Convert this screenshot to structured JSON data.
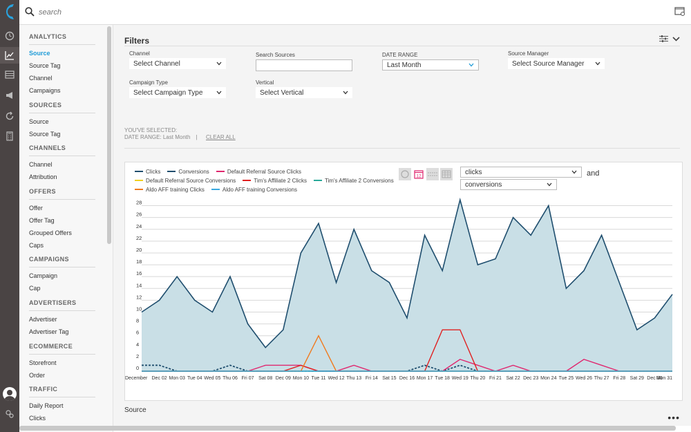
{
  "search": {
    "placeholder": "search"
  },
  "nav": {
    "sections": [
      {
        "title": "ANALYTICS",
        "items": [
          "Source",
          "Source Tag",
          "Channel",
          "Campaigns"
        ],
        "active": 0
      },
      {
        "title": "SOURCES",
        "items": [
          "Source",
          "Source Tag"
        ]
      },
      {
        "title": "CHANNELS",
        "items": [
          "Channel",
          "Attribution"
        ]
      },
      {
        "title": "OFFERS",
        "items": [
          "Offer",
          "Offer Tag",
          "Grouped Offers",
          "Caps"
        ]
      },
      {
        "title": "CAMPAIGNS",
        "items": [
          "Campaign",
          "Cap"
        ]
      },
      {
        "title": "ADVERTISERS",
        "items": [
          "Advertiser",
          "Advertiser Tag"
        ]
      },
      {
        "title": "ECOMMERCE",
        "items": [
          "Storefront",
          "Order"
        ]
      },
      {
        "title": "TRAFFIC",
        "items": [
          "Daily Report",
          "Clicks"
        ]
      }
    ]
  },
  "filters": {
    "title": "Filters",
    "channel": {
      "label": "Channel",
      "value": "Select Channel"
    },
    "search_sources": {
      "label": "Search Sources",
      "value": ""
    },
    "date_range": {
      "label": "DATE RANGE",
      "value": "Last Month"
    },
    "source_manager": {
      "label": "Source Manager",
      "value": "Select Source Manager"
    },
    "campaign_type": {
      "label": "Campaign Type",
      "value": "Select Campaign Type"
    },
    "vertical": {
      "label": "Vertical",
      "value": "Select Vertical"
    }
  },
  "selected": {
    "heading": "YOU'VE SELECTED:",
    "date_range_text": "DATE RANGE:  Last Month",
    "separator": "|",
    "clear_all": "CLEAR ALL"
  },
  "chart_controls": {
    "metric1": "clicks",
    "metric2": "conversions",
    "and_label": "and",
    "calendar_number": "12"
  },
  "footer": {
    "source_label": "Source"
  },
  "colors": {
    "clicks": "#1f4e6e",
    "clicks_fill": "#c9dfe6",
    "conversions": "#1f4e6e",
    "default_referral_clicks": "#e0266e",
    "default_referral_conversions": "#f0d020",
    "tims_affiliate_clicks": "#e02020",
    "tims_affiliate_conversions": "#2aaa9a",
    "aldo_clicks": "#f07a1e",
    "aldo_conversions": "#3aa8e0"
  },
  "chart_data": {
    "type": "area",
    "x": [
      "December",
      "Dec 02",
      "Mon 03",
      "Tue 04",
      "Wed 05",
      "Thu 06",
      "Fri 07",
      "Sat 08",
      "Dec 09",
      "Mon 10",
      "Tue 11",
      "Wed 12",
      "Thu 13",
      "Fri 14",
      "Sat 15",
      "Dec 16",
      "Mon 17",
      "Tue 18",
      "Wed 19",
      "Thu 20",
      "Fri 21",
      "Sat 22",
      "Dec 23",
      "Mon 24",
      "Tue 25",
      "Wed 26",
      "Thu 27",
      "Fri 28",
      "Sat 29",
      "Dec 30",
      "Mon 31"
    ],
    "yticks": [
      0,
      2,
      4,
      6,
      8,
      10,
      12,
      14,
      16,
      18,
      20,
      22,
      24,
      26,
      28
    ],
    "ylim": [
      0,
      29
    ],
    "grid": true,
    "legend_position": "top-left",
    "series": [
      {
        "name": "Clicks",
        "key": "clicks",
        "style": "area",
        "values": [
          10,
          12,
          16,
          12,
          10,
          16,
          8,
          4,
          7,
          20,
          25,
          15,
          24,
          17,
          15,
          9,
          23,
          17,
          29,
          18,
          19,
          26,
          23,
          28,
          14,
          17,
          23,
          15,
          7,
          9,
          13
        ]
      },
      {
        "name": "Conversions",
        "key": "conversions",
        "style": "dashed",
        "values": [
          1,
          1,
          0,
          0,
          0,
          1,
          0,
          0,
          0,
          0,
          0,
          0,
          0,
          0,
          0,
          0,
          1,
          0,
          1,
          0,
          0,
          0,
          0,
          0,
          0,
          0,
          0,
          0,
          0,
          0,
          0
        ]
      },
      {
        "name": "Default Referral Source Clicks",
        "key": "default_referral_clicks",
        "style": "line",
        "values": [
          0,
          0,
          0,
          0,
          0,
          0,
          0,
          1,
          1,
          1,
          0,
          0,
          1,
          0,
          0,
          0,
          0,
          0,
          2,
          1,
          0,
          1,
          0,
          0,
          0,
          2,
          1,
          0,
          0,
          0,
          0
        ]
      },
      {
        "name": "Default Referral Source Conversions",
        "key": "default_referral_conversions",
        "style": "line",
        "values": [
          0,
          0,
          0,
          0,
          0,
          0,
          0,
          0,
          0,
          0,
          0,
          0,
          0,
          0,
          0,
          0,
          0,
          0,
          0,
          0,
          0,
          0,
          0,
          0,
          0,
          0,
          0,
          0,
          0,
          0,
          0
        ]
      },
      {
        "name": "Tim's Affiliate 2 Clicks",
        "key": "tims_affiliate_clicks",
        "style": "line",
        "values": [
          0,
          0,
          0,
          0,
          0,
          0,
          0,
          0,
          0,
          1,
          0,
          0,
          0,
          0,
          0,
          0,
          0,
          7,
          7,
          0,
          0,
          0,
          0,
          0,
          0,
          0,
          0,
          0,
          0,
          0,
          0
        ]
      },
      {
        "name": "Tim's Affiliate 2 Conversions",
        "key": "tims_affiliate_conversions",
        "style": "line",
        "values": [
          0,
          0,
          0,
          0,
          0,
          0,
          0,
          0,
          0,
          0,
          0,
          0,
          0,
          0,
          0,
          0,
          0,
          0,
          0,
          0,
          0,
          0,
          0,
          0,
          0,
          0,
          0,
          0,
          0,
          0,
          0
        ]
      },
      {
        "name": "Aldo AFF training Clicks",
        "key": "aldo_clicks",
        "style": "line",
        "values": [
          0,
          0,
          0,
          0,
          0,
          0,
          0,
          0,
          0,
          0,
          6,
          0,
          0,
          0,
          0,
          0,
          0,
          0,
          0,
          0,
          0,
          0,
          0,
          0,
          0,
          0,
          0,
          0,
          0,
          0,
          0
        ]
      },
      {
        "name": "Aldo AFF training Conversions",
        "key": "aldo_conversions",
        "style": "line",
        "values": [
          0,
          0,
          0,
          0,
          0,
          0,
          0,
          0,
          0,
          0,
          0,
          0,
          0,
          0,
          0,
          0,
          0,
          0,
          0,
          0,
          0,
          0,
          0,
          0,
          0,
          0,
          0,
          0,
          0,
          0,
          0
        ]
      }
    ]
  }
}
